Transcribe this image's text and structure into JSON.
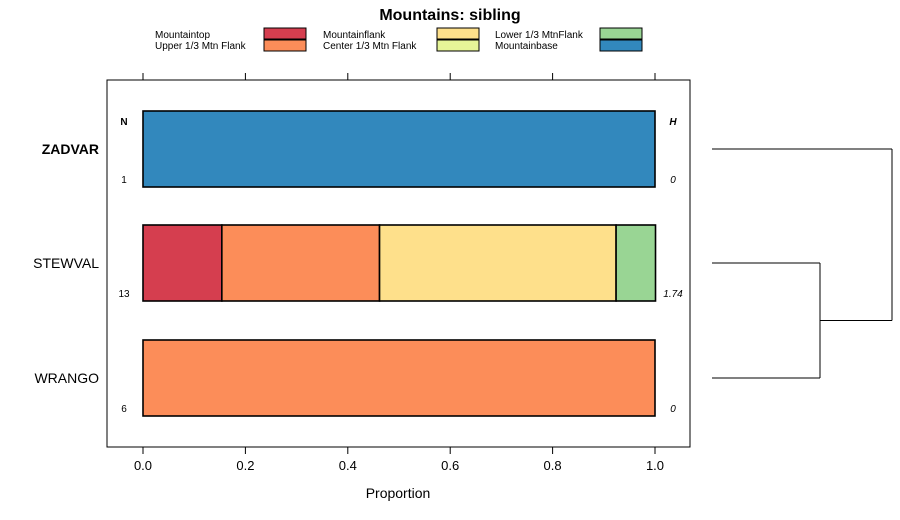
{
  "chart_data": {
    "type": "bar",
    "orientation": "horizontal",
    "stacked": true,
    "title": "Mountains: sibling",
    "xlabel": "Proportion",
    "ylabel": "",
    "xlim": [
      -0.07,
      1.07
    ],
    "x_ticks": [
      0.0,
      0.2,
      0.4,
      0.6,
      0.8,
      1.0
    ],
    "x_tick_labels": [
      "0.0",
      "0.2",
      "0.4",
      "0.6",
      "0.8",
      "1.0"
    ],
    "grid": false,
    "legend_position": "top",
    "series": [
      {
        "name": "Mountaintop",
        "color": "#d53e4f",
        "values": [
          0.0,
          0.154,
          0.0
        ]
      },
      {
        "name": "Upper 1/3 Mtn Flank",
        "color": "#fc8d59",
        "values": [
          0.0,
          0.308,
          1.0
        ]
      },
      {
        "name": "Mountainflank",
        "color": "#fee08b",
        "values": [
          0.0,
          0.462,
          0.0
        ]
      },
      {
        "name": "Center 1/3 Mtn Flank",
        "color": "#e6f598",
        "values": [
          0.0,
          0.0,
          0.0
        ]
      },
      {
        "name": "Lower 1/3 MtnFlank",
        "color": "#99d594",
        "values": [
          0.0,
          0.077,
          0.0
        ]
      },
      {
        "name": "Mountainbase",
        "color": "#3288bd",
        "values": [
          1.0,
          0.0,
          0.0
        ]
      }
    ],
    "categories": [
      {
        "label": "ZADVAR",
        "bold": true,
        "n": "1",
        "h": "0"
      },
      {
        "label": "STEWVAL",
        "bold": false,
        "n": "13",
        "h": "1.74"
      },
      {
        "label": "WRANGO",
        "bold": false,
        "n": "6",
        "h": "0"
      }
    ],
    "n_header": "N",
    "h_header": "H",
    "dendrogram": {
      "type": "dendrogram",
      "leaf_order": [
        "ZADVAR",
        "STEWVAL",
        "WRANGO"
      ],
      "merges": [
        [
          "STEWVAL",
          "WRANGO"
        ],
        [
          "ZADVAR",
          "STEWVAL+WRANGO"
        ]
      ]
    }
  }
}
